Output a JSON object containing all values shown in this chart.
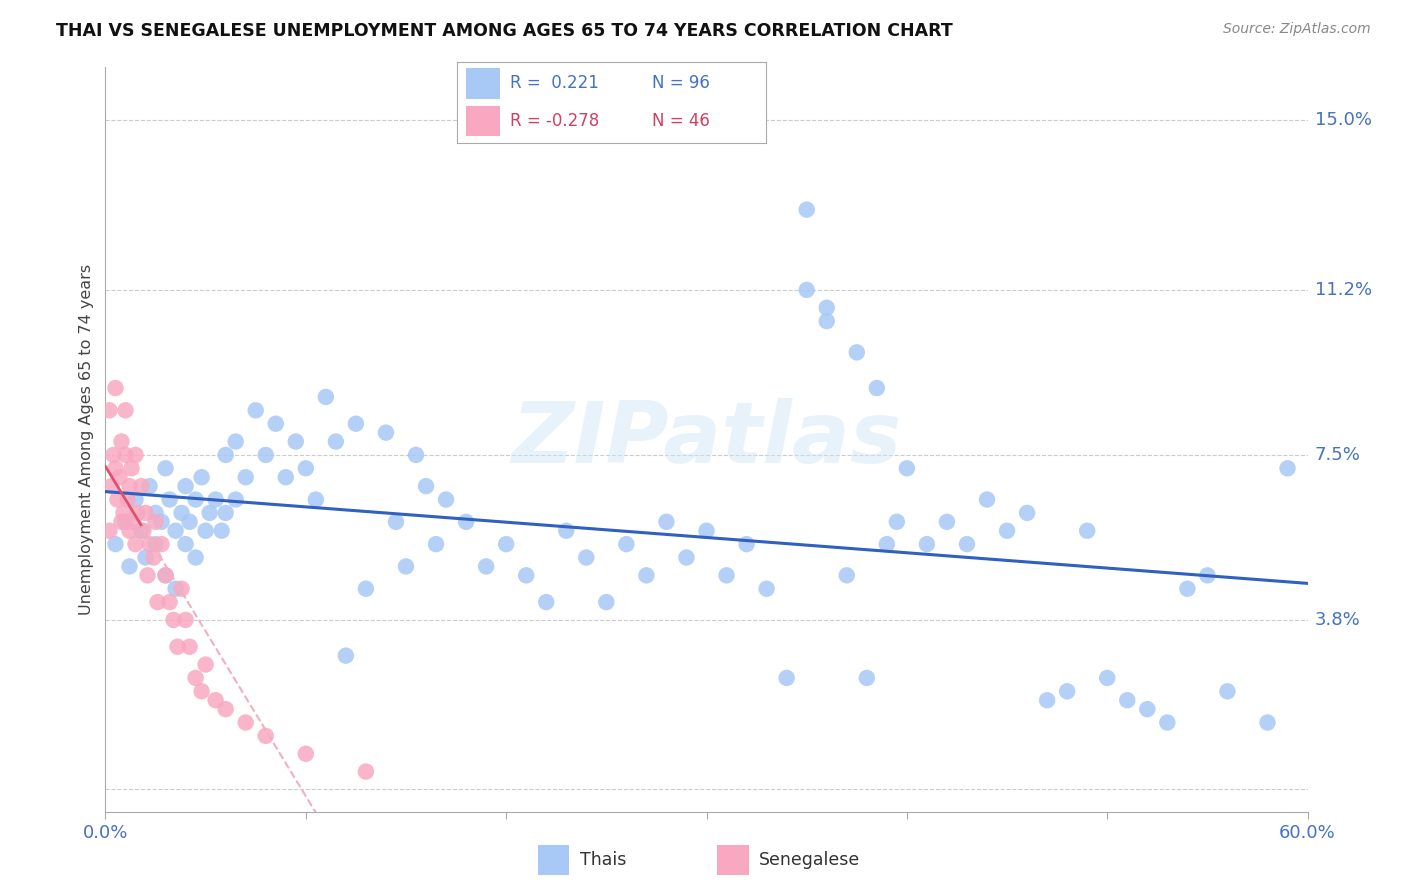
{
  "title": "THAI VS SENEGALESE UNEMPLOYMENT AMONG AGES 65 TO 74 YEARS CORRELATION CHART",
  "source": "Source: ZipAtlas.com",
  "ylabel": "Unemployment Among Ages 65 to 74 years",
  "xlim": [
    0.0,
    0.6
  ],
  "ylim": [
    -0.005,
    0.162
  ],
  "xticks": [
    0.0,
    0.1,
    0.2,
    0.3,
    0.4,
    0.5,
    0.6
  ],
  "xticklabels": [
    "0.0%",
    "",
    "",
    "",
    "",
    "",
    "60.0%"
  ],
  "ytick_positions": [
    0.0,
    0.038,
    0.075,
    0.112,
    0.15
  ],
  "ytick_labels": [
    "",
    "3.8%",
    "7.5%",
    "11.2%",
    "15.0%"
  ],
  "thai_color": "#a8c8f5",
  "senegalese_color": "#f8a8c0",
  "thai_line_color": "#3060c0",
  "senegalese_line_color": "#e05070",
  "senegalese_dash_color": "#f0b0c0",
  "legend_thai_r": "0.221",
  "legend_thai_n": "96",
  "legend_senegalese_r": "-0.278",
  "legend_senegalese_n": "46",
  "watermark": "ZIPatlas",
  "thai_x": [
    0.005,
    0.01,
    0.012,
    0.015,
    0.018,
    0.02,
    0.022,
    0.025,
    0.025,
    0.028,
    0.03,
    0.03,
    0.032,
    0.035,
    0.035,
    0.038,
    0.04,
    0.04,
    0.042,
    0.045,
    0.045,
    0.048,
    0.05,
    0.052,
    0.055,
    0.058,
    0.06,
    0.06,
    0.065,
    0.065,
    0.07,
    0.075,
    0.08,
    0.085,
    0.09,
    0.095,
    0.1,
    0.105,
    0.11,
    0.115,
    0.12,
    0.125,
    0.13,
    0.14,
    0.145,
    0.15,
    0.155,
    0.16,
    0.165,
    0.17,
    0.18,
    0.19,
    0.2,
    0.21,
    0.22,
    0.23,
    0.24,
    0.25,
    0.26,
    0.27,
    0.28,
    0.29,
    0.3,
    0.31,
    0.32,
    0.33,
    0.34,
    0.35,
    0.36,
    0.37,
    0.38,
    0.39,
    0.4,
    0.41,
    0.42,
    0.43,
    0.44,
    0.45,
    0.46,
    0.47,
    0.48,
    0.49,
    0.5,
    0.51,
    0.52,
    0.53,
    0.54,
    0.55,
    0.56,
    0.58,
    0.59,
    0.35,
    0.36,
    0.375,
    0.385,
    0.395
  ],
  "thai_y": [
    0.055,
    0.06,
    0.05,
    0.065,
    0.058,
    0.052,
    0.068,
    0.062,
    0.055,
    0.06,
    0.072,
    0.048,
    0.065,
    0.058,
    0.045,
    0.062,
    0.055,
    0.068,
    0.06,
    0.065,
    0.052,
    0.07,
    0.058,
    0.062,
    0.065,
    0.058,
    0.075,
    0.062,
    0.078,
    0.065,
    0.07,
    0.085,
    0.075,
    0.082,
    0.07,
    0.078,
    0.072,
    0.065,
    0.088,
    0.078,
    0.03,
    0.082,
    0.045,
    0.08,
    0.06,
    0.05,
    0.075,
    0.068,
    0.055,
    0.065,
    0.06,
    0.05,
    0.055,
    0.048,
    0.042,
    0.058,
    0.052,
    0.042,
    0.055,
    0.048,
    0.06,
    0.052,
    0.058,
    0.048,
    0.055,
    0.045,
    0.025,
    0.112,
    0.108,
    0.048,
    0.025,
    0.055,
    0.072,
    0.055,
    0.06,
    0.055,
    0.065,
    0.058,
    0.062,
    0.02,
    0.022,
    0.058,
    0.025,
    0.02,
    0.018,
    0.015,
    0.045,
    0.048,
    0.022,
    0.015,
    0.072,
    0.13,
    0.105,
    0.098,
    0.09,
    0.06
  ],
  "senegalese_x": [
    0.002,
    0.002,
    0.003,
    0.004,
    0.005,
    0.005,
    0.006,
    0.007,
    0.008,
    0.008,
    0.009,
    0.01,
    0.01,
    0.011,
    0.012,
    0.012,
    0.013,
    0.014,
    0.015,
    0.015,
    0.016,
    0.018,
    0.019,
    0.02,
    0.021,
    0.022,
    0.024,
    0.025,
    0.026,
    0.028,
    0.03,
    0.032,
    0.034,
    0.036,
    0.038,
    0.04,
    0.042,
    0.045,
    0.048,
    0.05,
    0.055,
    0.06,
    0.07,
    0.08,
    0.1,
    0.13
  ],
  "senegalese_y": [
    0.058,
    0.085,
    0.068,
    0.075,
    0.072,
    0.09,
    0.065,
    0.07,
    0.078,
    0.06,
    0.062,
    0.075,
    0.085,
    0.065,
    0.068,
    0.058,
    0.072,
    0.06,
    0.075,
    0.055,
    0.062,
    0.068,
    0.058,
    0.062,
    0.048,
    0.055,
    0.052,
    0.06,
    0.042,
    0.055,
    0.048,
    0.042,
    0.038,
    0.032,
    0.045,
    0.038,
    0.032,
    0.025,
    0.022,
    0.028,
    0.02,
    0.018,
    0.015,
    0.012,
    0.008,
    0.004
  ]
}
